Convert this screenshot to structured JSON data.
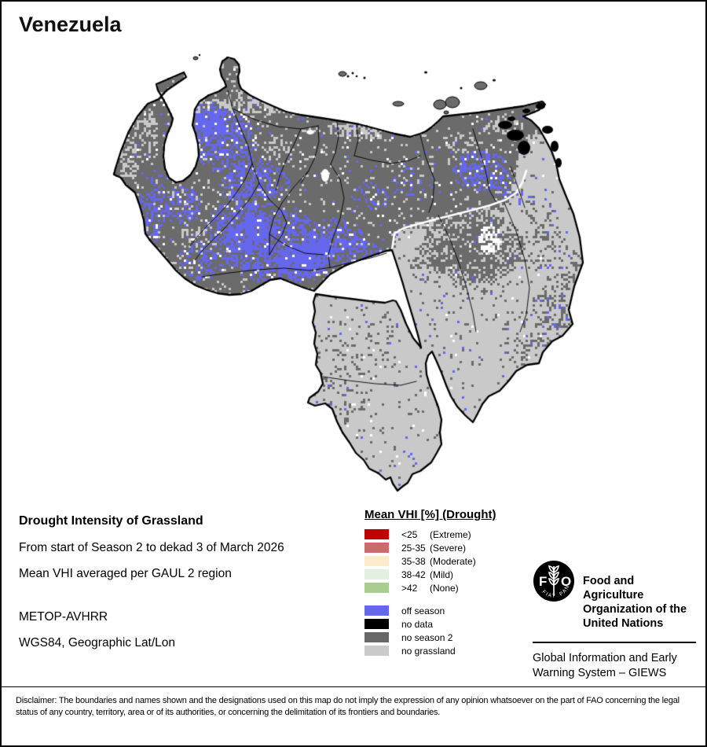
{
  "title": "Venezuela",
  "info": {
    "heading": "Drought Intensity of Grassland",
    "line1": "From start of Season 2 to dekad 3 of March 2026",
    "line2": "Mean VHI averaged per GAUL 2 region",
    "sensor": "METOP-AVHRR",
    "projection": "WGS84, Geographic Lat/Lon"
  },
  "legend": {
    "title": "Mean VHI [%] (Drought)",
    "drought_classes": [
      {
        "value": "<25",
        "severity": "(Extreme)",
        "color": "#c00000"
      },
      {
        "value": "25-35",
        "severity": "(Severe)",
        "color": "#cb6c6c"
      },
      {
        "value": "35-38",
        "severity": "(Moderate)",
        "color": "#fdeccc"
      },
      {
        "value": "38-42",
        "severity": "(Mild)",
        "color": "#e3efe0"
      },
      {
        "value": ">42",
        "severity": "(None)",
        "color": "#a8cd8e"
      }
    ],
    "other_classes": [
      {
        "label": "off season",
        "color": "#6667ef"
      },
      {
        "label": "no data",
        "color": "#000000"
      },
      {
        "label": "no season 2",
        "color": "#686868"
      },
      {
        "label": "no grassland",
        "color": "#cacaca"
      }
    ]
  },
  "branding": {
    "logo_text": "FAO",
    "logo_motto": "FIAT PANIS",
    "org_name": "Food and Agriculture\nOrganization of the\nUnited Nations",
    "giews": "Global Information and Early\nWarning System – GIEWS"
  },
  "disclaimer": "Disclaimer: The boundaries and names shown and the designations used on this map do not imply the expression of any opinion whatsoever on the part of FAO concerning the legal status of any country, territory, area or of its authorities, or concerning the delimitation of its frontiers and boundaries.",
  "map": {
    "colors": {
      "no_season2": "#6b6b6b",
      "no_grassland": "#c9c9c9",
      "off_season": "#6667ef",
      "no_data": "#000000",
      "water": "#ffffff",
      "boundary": "#000000"
    }
  }
}
